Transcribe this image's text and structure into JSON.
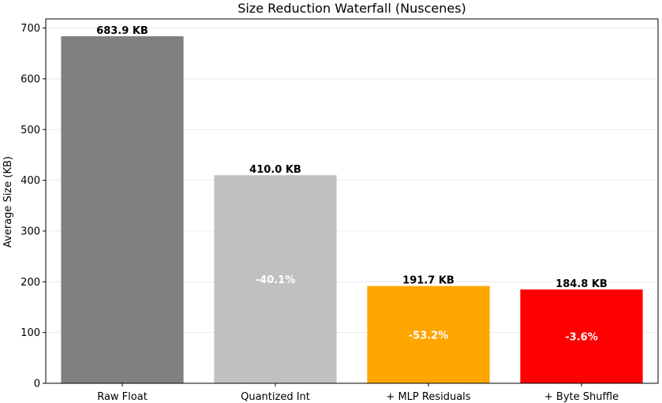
{
  "chart_data": {
    "type": "bar",
    "title": "Size Reduction Waterfall (Nuscenes)",
    "xlabel": "",
    "ylabel": "Average Size (KB)",
    "ylim": [
      0,
      718
    ],
    "yticks": [
      0,
      100,
      200,
      300,
      400,
      500,
      600,
      700
    ],
    "grid": "horizontal",
    "categories": [
      "Raw Float",
      "Quantized Int",
      "+ MLP Residuals",
      "+ Byte Shuffle"
    ],
    "values": [
      683.9,
      410.0,
      191.7,
      184.8
    ],
    "value_labels": [
      "683.9 KB",
      "410.0 KB",
      "191.7 KB",
      "184.8 KB"
    ],
    "reduction_labels": [
      "",
      "-40.1%",
      "-53.2%",
      "-3.6%"
    ],
    "colors": [
      "#808080",
      "#c0c0c0",
      "#ffa500",
      "#ff0000"
    ]
  }
}
